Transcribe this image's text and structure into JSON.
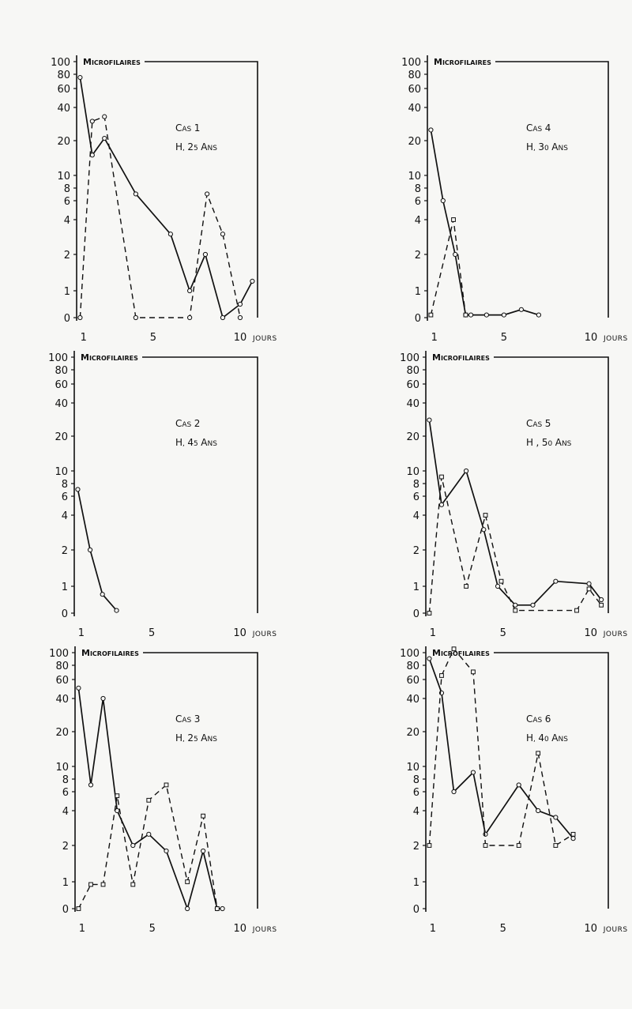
{
  "page": {
    "background": "#f7f7f5",
    "ink": "#111111"
  },
  "chart_data": [
    {
      "type": "line",
      "panel": "cas-1",
      "title_label": "Microfilaires",
      "case_label": "Cas 1",
      "subject_label": "H, 25 ans",
      "x_unit_label": "jours",
      "y_scale": "log-like (0 at bottom)",
      "y_ticks": [
        0,
        1,
        2,
        4,
        6,
        8,
        10,
        20,
        40,
        60,
        80,
        100
      ],
      "x_ticks": [
        1,
        5,
        10
      ],
      "xlim": [
        0.6,
        11
      ],
      "series": [
        {
          "style": "solid",
          "marker": "circle",
          "x": [
            0.8,
            1.5,
            2.2,
            4.0,
            6.0,
            7.1,
            8.0,
            9.0,
            10.0,
            10.7
          ],
          "y": [
            75,
            15,
            21,
            7,
            3,
            1,
            2,
            0,
            0.5,
            1.2
          ]
        },
        {
          "style": "dashed",
          "marker": "circle",
          "x": [
            0.8,
            1.5,
            2.2,
            4.0,
            7.1,
            8.1,
            9.0,
            10.0
          ],
          "y": [
            0,
            30,
            33,
            0,
            0,
            7,
            3,
            0
          ]
        }
      ]
    },
    {
      "type": "line",
      "panel": "cas-4",
      "title_label": "Microfilaires",
      "case_label": "Cas 4",
      "subject_label": "H, 30 ans",
      "x_unit_label": "jours",
      "y_scale": "log-like (0 at bottom)",
      "y_ticks": [
        0,
        1,
        2,
        4,
        6,
        8,
        10,
        20,
        40,
        60,
        80,
        100
      ],
      "x_ticks": [
        1,
        5,
        10
      ],
      "xlim": [
        0.6,
        11
      ],
      "series": [
        {
          "style": "solid",
          "marker": "circle",
          "x": [
            0.8,
            1.5,
            2.2,
            2.8,
            3.1,
            4.0,
            5.0,
            6.0,
            7.0
          ],
          "y": [
            25,
            6,
            2,
            0.1,
            0.1,
            0.1,
            0.1,
            0.3,
            0.1
          ]
        },
        {
          "style": "dashed",
          "marker": "square",
          "x": [
            0.8,
            2.1,
            2.8
          ],
          "y": [
            0.1,
            4,
            0.1
          ]
        }
      ]
    },
    {
      "type": "line",
      "panel": "cas-2",
      "title_label": "Microfilaires",
      "case_label": "Cas 2",
      "subject_label": "H, 45 ans",
      "x_unit_label": "jours",
      "y_scale": "log-like (0 at bottom)",
      "y_ticks": [
        0,
        1,
        2,
        4,
        6,
        8,
        10,
        20,
        40,
        60,
        80,
        100
      ],
      "x_ticks": [
        1,
        5,
        10
      ],
      "xlim": [
        0.6,
        11
      ],
      "series": [
        {
          "style": "solid",
          "marker": "circle",
          "x": [
            0.8,
            1.5,
            2.2,
            3.0
          ],
          "y": [
            7,
            2,
            0.7,
            0.1
          ]
        }
      ]
    },
    {
      "type": "line",
      "panel": "cas-5",
      "title_label": "Microfilaires",
      "case_label": "Cas 5",
      "subject_label": "H , 50 ans",
      "x_unit_label": "jours",
      "y_scale": "log-like (0 at bottom)",
      "y_ticks": [
        0,
        1,
        2,
        4,
        6,
        8,
        10,
        20,
        40,
        60,
        80,
        100
      ],
      "x_ticks": [
        1,
        5,
        10
      ],
      "xlim": [
        0.6,
        11
      ],
      "series": [
        {
          "style": "solid",
          "marker": "circle",
          "x": [
            0.8,
            1.5,
            2.9,
            3.9,
            4.7,
            5.7,
            6.7,
            8.0,
            9.9,
            10.6
          ],
          "y": [
            28,
            5,
            10,
            3,
            1,
            0.3,
            0.3,
            1.1,
            1.05,
            0.5
          ]
        },
        {
          "style": "dashed",
          "marker": "square",
          "x": [
            0.8,
            1.5,
            2.9,
            4.0,
            4.9,
            5.7,
            9.2,
            9.9,
            10.6
          ],
          "y": [
            0,
            9,
            1,
            4,
            1.1,
            0.1,
            0.1,
            0.9,
            0.3
          ]
        }
      ]
    },
    {
      "type": "line",
      "panel": "cas-3",
      "title_label": "Microfilaires",
      "case_label": "Cas 3",
      "subject_label": "H, 25 ans",
      "x_unit_label": "jours",
      "y_scale": "log-like (0 at bottom)",
      "y_ticks": [
        0,
        1,
        2,
        4,
        6,
        8,
        10,
        20,
        40,
        60,
        80,
        100
      ],
      "x_ticks": [
        1,
        5,
        10
      ],
      "xlim": [
        0.6,
        11
      ],
      "series": [
        {
          "style": "solid",
          "marker": "circle",
          "x": [
            0.8,
            1.5,
            2.2,
            3.0,
            3.9,
            4.8,
            5.8,
            7.0,
            7.9,
            8.7,
            9.0
          ],
          "y": [
            50,
            7,
            40,
            4,
            2,
            2.5,
            1.8,
            0,
            1.8,
            0,
            0
          ]
        },
        {
          "style": "dashed",
          "marker": "square",
          "x": [
            0.8,
            1.5,
            2.2,
            3.0,
            3.9,
            4.8,
            5.8,
            7.0,
            7.9,
            8.7
          ],
          "y": [
            0,
            0.9,
            0.9,
            5.5,
            0.9,
            5,
            7,
            1,
            3.6,
            0
          ]
        }
      ]
    },
    {
      "type": "line",
      "panel": "cas-6",
      "title_label": "Microfilaires",
      "case_label": "Cas 6",
      "subject_label": "H, 40 ans",
      "x_unit_label": "jours",
      "y_scale": "log-like (0 at bottom)",
      "y_ticks": [
        0,
        1,
        2,
        4,
        6,
        8,
        10,
        20,
        40,
        60,
        80,
        100
      ],
      "x_ticks": [
        1,
        5,
        10
      ],
      "xlim": [
        0.6,
        11
      ],
      "series": [
        {
          "style": "solid",
          "marker": "circle",
          "x": [
            0.8,
            1.5,
            2.2,
            3.3,
            4.0,
            5.9,
            7.0,
            8.0,
            9.0
          ],
          "y": [
            90,
            45,
            6,
            9,
            2.5,
            7,
            4,
            3.5,
            2.3
          ]
        },
        {
          "style": "dashed",
          "marker": "square",
          "x": [
            0.8,
            1.5,
            2.2,
            3.3,
            4.0,
            5.9,
            7.0,
            8.0,
            9.0
          ],
          "y": [
            2,
            65,
            120,
            70,
            2,
            2,
            13,
            2,
            2.5
          ]
        }
      ]
    }
  ]
}
